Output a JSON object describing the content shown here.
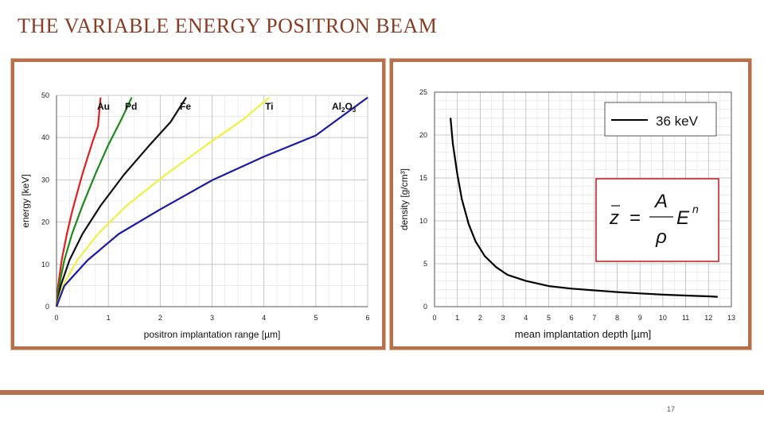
{
  "slide": {
    "title": "THE VARIABLE ENERGY POSITRON BEAM",
    "page_number": "17"
  },
  "chart_data": [
    {
      "type": "line",
      "xlabel": "positron implantation range [µm]",
      "ylabel": "energy [keV]",
      "xlim": [
        0,
        6
      ],
      "ylim": [
        0,
        50
      ],
      "xticks": [
        0,
        1,
        2,
        3,
        4,
        5,
        6
      ],
      "yticks": [
        0,
        10,
        20,
        30,
        40,
        50
      ],
      "grid": true,
      "legend": "top, labels above curve ends",
      "series": [
        {
          "name": "Au",
          "color": "#e02020",
          "x": [
            0,
            0.03,
            0.1,
            0.2,
            0.3,
            0.4,
            0.5,
            0.6,
            0.7,
            0.8,
            0.85
          ],
          "y": [
            0,
            4.9,
            11.0,
            17.2,
            22.4,
            27.0,
            31.4,
            35.3,
            39.2,
            42.7,
            49.5
          ]
        },
        {
          "name": "Pd",
          "color": "#1a8a1a",
          "x": [
            0,
            0.05,
            0.15,
            0.3,
            0.5,
            0.75,
            1.0,
            1.25,
            1.45
          ],
          "y": [
            0,
            4.9,
            11.0,
            17.2,
            23.9,
            31.4,
            38.3,
            44.3,
            49.5
          ]
        },
        {
          "name": "Fe",
          "color": "#111111",
          "x": [
            0,
            0.08,
            0.25,
            0.5,
            0.85,
            1.3,
            1.8,
            2.2,
            2.5
          ],
          "y": [
            0,
            4.9,
            11.0,
            17.2,
            23.9,
            31.2,
            38.3,
            43.7,
            49.5
          ]
        },
        {
          "name": "Ti",
          "color": "#f0f040",
          "x": [
            0,
            0.12,
            0.4,
            0.8,
            1.35,
            2.1,
            2.9,
            3.6,
            4.1
          ],
          "y": [
            0,
            4.9,
            11.0,
            17.2,
            23.9,
            31.2,
            38.3,
            44.3,
            49.5
          ]
        },
        {
          "name": "Al2O3",
          "color": "#1a1aa8",
          "x": [
            0,
            0.15,
            0.6,
            1.2,
            2.0,
            3.0,
            4.0,
            5.0,
            6.0
          ],
          "y": [
            0,
            4.9,
            11.0,
            17.2,
            23.0,
            29.9,
            35.5,
            40.5,
            49.5
          ]
        }
      ]
    },
    {
      "type": "line",
      "xlabel": "mean implantation depth [µm]",
      "ylabel": "density [g/cm³]",
      "xlim": [
        0,
        13
      ],
      "ylim": [
        0,
        25
      ],
      "xticks": [
        0,
        1,
        2,
        3,
        4,
        5,
        6,
        7,
        8,
        9,
        10,
        11,
        12,
        13
      ],
      "yticks": [
        0,
        5,
        10,
        15,
        20,
        25
      ],
      "grid": true,
      "legend": "top-right",
      "formula": {
        "lhs": "z",
        "eq": "=",
        "numerator": "A",
        "denominator": "ρ",
        "base": "E",
        "exponent": "n"
      },
      "series": [
        {
          "name": "36 keV",
          "color": "#000000",
          "x": [
            0.7,
            0.8,
            1.0,
            1.2,
            1.5,
            1.8,
            2.2,
            2.7,
            3.2,
            4.0,
            5.0,
            6.0,
            7.0,
            8.0,
            9.0,
            10.0,
            11.0,
            12.0,
            12.4
          ],
          "y": [
            22.0,
            19.0,
            15.4,
            12.5,
            9.6,
            7.6,
            5.9,
            4.6,
            3.7,
            3.0,
            2.4,
            2.1,
            1.9,
            1.7,
            1.55,
            1.4,
            1.3,
            1.2,
            1.15
          ]
        }
      ]
    }
  ]
}
